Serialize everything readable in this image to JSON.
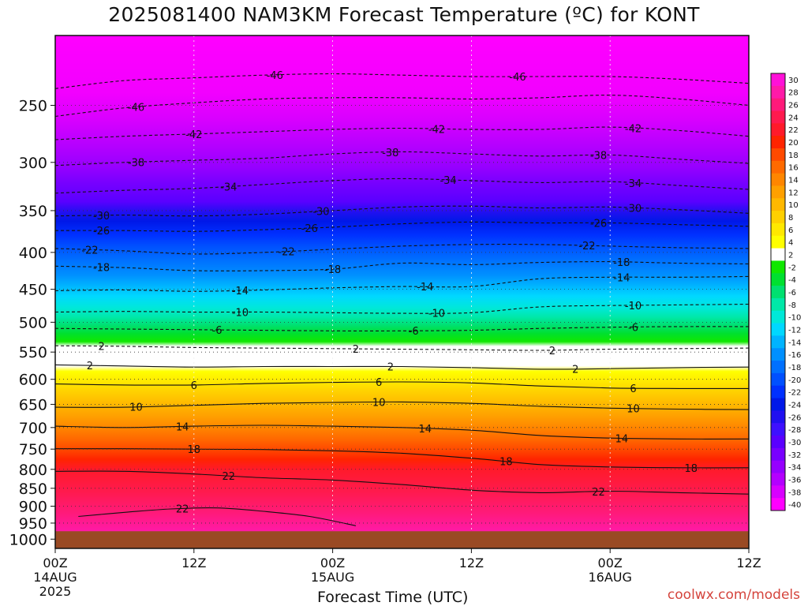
{
  "title": "2025081400 NAM3KM Forecast Temperature (ºC) for KONT",
  "credit": "coolwx.com/models",
  "chart_data": {
    "type": "heatmap",
    "title": "2025081400 NAM3KM Forecast Temperature (ºC) for KONT",
    "xlabel": "Forecast Time (UTC)",
    "ylabel": "",
    "x_range_hours": [
      0,
      60
    ],
    "y_range_hpa": [
      200,
      1030
    ],
    "y_scale": "log",
    "grid": "dotted",
    "x_ticks": [
      {
        "hour": 0,
        "label": "00Z",
        "sub1": "14AUG",
        "sub2": "2025"
      },
      {
        "hour": 12,
        "label": "12Z",
        "sub1": "",
        "sub2": ""
      },
      {
        "hour": 24,
        "label": "00Z",
        "sub1": "15AUG",
        "sub2": ""
      },
      {
        "hour": 36,
        "label": "12Z",
        "sub1": "",
        "sub2": ""
      },
      {
        "hour": 48,
        "label": "00Z",
        "sub1": "16AUG",
        "sub2": ""
      },
      {
        "hour": 60,
        "label": "12Z",
        "sub1": "",
        "sub2": ""
      }
    ],
    "y_ticks": [
      250,
      300,
      350,
      400,
      450,
      500,
      550,
      600,
      650,
      700,
      750,
      800,
      850,
      900,
      950,
      1000
    ],
    "below_ground_hpa": 975,
    "below_ground_color": "#9a4a24",
    "colorbar": {
      "labels": [
        30,
        28,
        26,
        24,
        22,
        20,
        18,
        16,
        14,
        12,
        10,
        8,
        6,
        4,
        2,
        -2,
        -4,
        -6,
        -8,
        -10,
        -12,
        -14,
        -16,
        -18,
        -20,
        -22,
        -24,
        -26,
        -28,
        -30,
        -32,
        -34,
        -36,
        -38,
        -40
      ],
      "colors": [
        "#ff10d8",
        "#ff1aa8",
        "#ff1a7a",
        "#ff1a4e",
        "#ff1a2a",
        "#ff2400",
        "#ff4a00",
        "#ff6a00",
        "#ff8600",
        "#ffa000",
        "#ffb800",
        "#ffd000",
        "#ffe800",
        "#ffff00",
        "#ffffff",
        "#10e800",
        "#00e030",
        "#00e070",
        "#00e8a8",
        "#00e8d8",
        "#00d8ff",
        "#00b4ff",
        "#0090ff",
        "#0070ff",
        "#0050ff",
        "#0030ff",
        "#0018e8",
        "#2010f0",
        "#3e10ff",
        "#5a00ff",
        "#7800ff",
        "#9600ff",
        "#b400ff",
        "#d800ff",
        "#ff00ff"
      ]
    },
    "isotherms": [
      {
        "value": -46,
        "line": "dashed",
        "label_hours": [
          19,
          40
        ],
        "points": [
          [
            0,
            237
          ],
          [
            6,
            231
          ],
          [
            12,
            229
          ],
          [
            18,
            227
          ],
          [
            24,
            226
          ],
          [
            30,
            227
          ],
          [
            36,
            228
          ],
          [
            42,
            228
          ],
          [
            48,
            228
          ],
          [
            54,
            230
          ],
          [
            60,
            233
          ]
        ]
      },
      {
        "value": -46,
        "line": "dashed",
        "label_hours": [
          7
        ],
        "points": [
          [
            0,
            259
          ],
          [
            6,
            252
          ],
          [
            12,
            248
          ],
          [
            18,
            245
          ],
          [
            24,
            244
          ],
          [
            30,
            244
          ],
          [
            36,
            245
          ],
          [
            42,
            244
          ],
          [
            48,
            242
          ],
          [
            54,
            245
          ],
          [
            60,
            250
          ]
        ]
      },
      {
        "value": -42,
        "line": "dashed",
        "label_hours": [
          12,
          33,
          50
        ],
        "points": [
          [
            0,
            279
          ],
          [
            6,
            276
          ],
          [
            12,
            274
          ],
          [
            18,
            272
          ],
          [
            24,
            270
          ],
          [
            30,
            269
          ],
          [
            36,
            270
          ],
          [
            42,
            270
          ],
          [
            48,
            268
          ],
          [
            54,
            271
          ],
          [
            60,
            276
          ]
        ]
      },
      {
        "value": -38,
        "line": "dashed",
        "label_hours": [
          7,
          29,
          47
        ],
        "points": [
          [
            0,
            303
          ],
          [
            6,
            300
          ],
          [
            12,
            298
          ],
          [
            18,
            296
          ],
          [
            24,
            292
          ],
          [
            30,
            290
          ],
          [
            36,
            292
          ],
          [
            42,
            294
          ],
          [
            48,
            293
          ],
          [
            54,
            297
          ],
          [
            60,
            301
          ]
        ]
      },
      {
        "value": -34,
        "line": "dashed",
        "label_hours": [
          15,
          34,
          50
        ],
        "points": [
          [
            0,
            331
          ],
          [
            6,
            328
          ],
          [
            12,
            326
          ],
          [
            18,
            322
          ],
          [
            24,
            318
          ],
          [
            30,
            316
          ],
          [
            36,
            318
          ],
          [
            42,
            320
          ],
          [
            48,
            319
          ],
          [
            54,
            323
          ],
          [
            60,
            327
          ]
        ]
      },
      {
        "value": -30,
        "line": "dashed",
        "label_hours": [
          4,
          23,
          50
        ],
        "points": [
          [
            0,
            356
          ],
          [
            6,
            355
          ],
          [
            12,
            356
          ],
          [
            18,
            354
          ],
          [
            24,
            350
          ],
          [
            30,
            346
          ],
          [
            36,
            345
          ],
          [
            42,
            347
          ],
          [
            48,
            346
          ],
          [
            54,
            349
          ],
          [
            60,
            353
          ]
        ]
      },
      {
        "value": -26,
        "line": "dashed",
        "label_hours": [
          4,
          22,
          47
        ],
        "points": [
          [
            0,
            373
          ],
          [
            6,
            373
          ],
          [
            12,
            374
          ],
          [
            18,
            372
          ],
          [
            24,
            369
          ],
          [
            30,
            365
          ],
          [
            36,
            363
          ],
          [
            42,
            364
          ],
          [
            48,
            364
          ],
          [
            54,
            366
          ],
          [
            60,
            368
          ]
        ]
      },
      {
        "value": -22,
        "line": "dashed",
        "label_hours": [
          3,
          20,
          46
        ],
        "points": [
          [
            0,
            395
          ],
          [
            6,
            398
          ],
          [
            12,
            402
          ],
          [
            18,
            400
          ],
          [
            24,
            396
          ],
          [
            30,
            392
          ],
          [
            36,
            390
          ],
          [
            42,
            390
          ],
          [
            48,
            392
          ],
          [
            54,
            394
          ],
          [
            60,
            395
          ]
        ]
      },
      {
        "value": -18,
        "line": "dashed",
        "label_hours": [
          4,
          24,
          49
        ],
        "points": [
          [
            0,
            418
          ],
          [
            6,
            420
          ],
          [
            12,
            424
          ],
          [
            18,
            424
          ],
          [
            24,
            422
          ],
          [
            30,
            414
          ],
          [
            36,
            416
          ],
          [
            42,
            413
          ],
          [
            48,
            412
          ],
          [
            54,
            414
          ],
          [
            60,
            415
          ]
        ]
      },
      {
        "value": -14,
        "line": "dashed",
        "label_hours": [
          16,
          32,
          49
        ],
        "points": [
          [
            0,
            452
          ],
          [
            6,
            451
          ],
          [
            12,
            453
          ],
          [
            18,
            451
          ],
          [
            24,
            448
          ],
          [
            30,
            446
          ],
          [
            36,
            446
          ],
          [
            42,
            435
          ],
          [
            48,
            433
          ],
          [
            54,
            433
          ],
          [
            60,
            432
          ]
        ]
      },
      {
        "value": -10,
        "line": "dashed",
        "label_hours": [
          16,
          33,
          50
        ],
        "points": [
          [
            0,
            484
          ],
          [
            6,
            483
          ],
          [
            12,
            484
          ],
          [
            18,
            484
          ],
          [
            24,
            485
          ],
          [
            30,
            486
          ],
          [
            36,
            485
          ],
          [
            42,
            476
          ],
          [
            48,
            474
          ],
          [
            54,
            473
          ],
          [
            60,
            472
          ]
        ]
      },
      {
        "value": -6,
        "line": "dashed",
        "label_hours": [
          14,
          31,
          50
        ],
        "points": [
          [
            0,
            510
          ],
          [
            6,
            511
          ],
          [
            12,
            512
          ],
          [
            18,
            513
          ],
          [
            24,
            514
          ],
          [
            30,
            514
          ],
          [
            36,
            513
          ],
          [
            42,
            510
          ],
          [
            48,
            508
          ],
          [
            54,
            507
          ],
          [
            60,
            507
          ]
        ]
      },
      {
        "value": 2,
        "line": "dashed",
        "label_hours": [
          4,
          26,
          43
        ],
        "points": [
          [
            0,
            539
          ],
          [
            6,
            540
          ],
          [
            12,
            542
          ],
          [
            18,
            543
          ],
          [
            24,
            544
          ],
          [
            30,
            545
          ],
          [
            36,
            546
          ],
          [
            42,
            547
          ],
          [
            48,
            545
          ],
          [
            54,
            544
          ],
          [
            60,
            543
          ]
        ]
      },
      {
        "value": 2,
        "line": "solid",
        "label_hours": [
          3,
          29,
          45
        ],
        "points": [
          [
            0,
            573
          ],
          [
            6,
            575
          ],
          [
            12,
            577
          ],
          [
            18,
            576
          ],
          [
            24,
            576
          ],
          [
            30,
            576
          ],
          [
            36,
            578
          ],
          [
            42,
            581
          ],
          [
            48,
            580
          ],
          [
            54,
            578
          ],
          [
            60,
            577
          ]
        ]
      },
      {
        "value": 6,
        "line": "solid",
        "label_hours": [
          12,
          28,
          50
        ],
        "points": [
          [
            0,
            609
          ],
          [
            6,
            611
          ],
          [
            12,
            611
          ],
          [
            18,
            608
          ],
          [
            24,
            606
          ],
          [
            30,
            605
          ],
          [
            36,
            607
          ],
          [
            42,
            613
          ],
          [
            48,
            617
          ],
          [
            54,
            618
          ],
          [
            60,
            618
          ]
        ]
      },
      {
        "value": 10,
        "line": "solid",
        "label_hours": [
          7,
          28,
          50
        ],
        "points": [
          [
            0,
            656
          ],
          [
            6,
            656
          ],
          [
            12,
            652
          ],
          [
            18,
            648
          ],
          [
            24,
            646
          ],
          [
            30,
            645
          ],
          [
            36,
            648
          ],
          [
            42,
            654
          ],
          [
            48,
            658
          ],
          [
            54,
            660
          ],
          [
            60,
            661
          ]
        ]
      },
      {
        "value": 14,
        "line": "solid",
        "label_hours": [
          11,
          32,
          49
        ],
        "points": [
          [
            0,
            697
          ],
          [
            6,
            700
          ],
          [
            12,
            697
          ],
          [
            18,
            695
          ],
          [
            24,
            697
          ],
          [
            30,
            700
          ],
          [
            36,
            706
          ],
          [
            42,
            718
          ],
          [
            48,
            724
          ],
          [
            54,
            726
          ],
          [
            60,
            726
          ]
        ]
      },
      {
        "value": 18,
        "line": "solid",
        "label_hours": [
          12,
          39,
          55
        ],
        "points": [
          [
            0,
            749
          ],
          [
            6,
            749
          ],
          [
            12,
            750
          ],
          [
            18,
            751
          ],
          [
            24,
            754
          ],
          [
            30,
            760
          ],
          [
            36,
            772
          ],
          [
            42,
            788
          ],
          [
            48,
            794
          ],
          [
            54,
            796
          ],
          [
            60,
            796
          ]
        ]
      },
      {
        "value": 22,
        "line": "solid",
        "label_hours": [
          15,
          47
        ],
        "points": [
          [
            0,
            805
          ],
          [
            6,
            805
          ],
          [
            12,
            812
          ],
          [
            18,
            822
          ],
          [
            24,
            828
          ],
          [
            30,
            840
          ],
          [
            36,
            855
          ],
          [
            42,
            862
          ],
          [
            48,
            858
          ],
          [
            54,
            862
          ],
          [
            60,
            866
          ]
        ]
      },
      {
        "value": 22,
        "line": "solid",
        "label_hours": [
          11
        ],
        "points": [
          [
            2,
            930
          ],
          [
            6,
            918
          ],
          [
            10,
            908
          ],
          [
            14,
            905
          ],
          [
            18,
            915
          ],
          [
            22,
            930
          ],
          [
            26,
            958
          ]
        ]
      }
    ]
  }
}
